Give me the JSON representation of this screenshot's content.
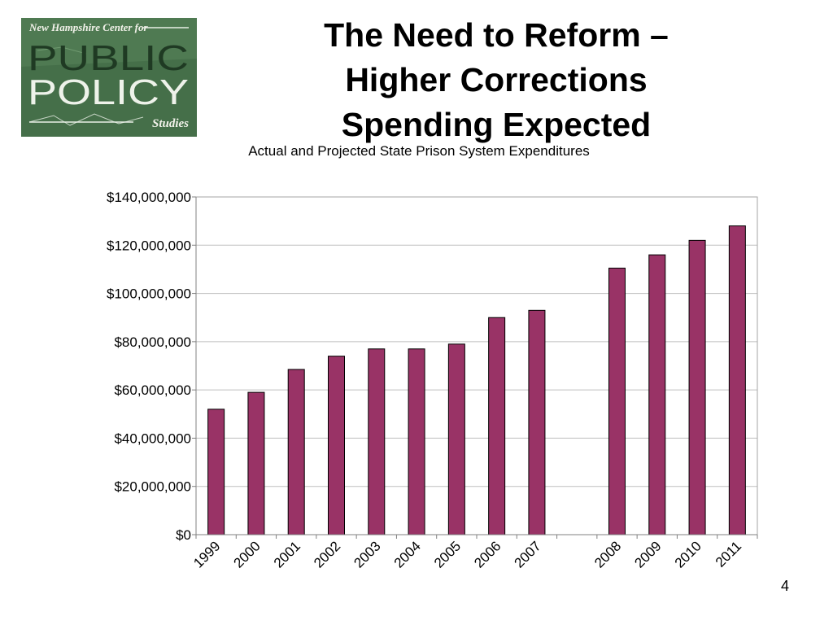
{
  "logo": {
    "line1": "New Hampshire Center for",
    "line2": "PUBLIC",
    "line3": "POLICY",
    "line4": "Studies"
  },
  "slide": {
    "title_lines": [
      "The Need to Reform –",
      "Higher Corrections",
      "Spending Expected"
    ],
    "page_number": "4"
  },
  "chart_data": {
    "type": "bar",
    "title": "Actual and Projected State Prison System Expenditures",
    "xlabel": "",
    "ylabel": "",
    "categories": [
      "1999",
      "2000",
      "2001",
      "2002",
      "2003",
      "2004",
      "2005",
      "2006",
      "2007",
      "",
      "2008",
      "2009",
      "2010",
      "2011"
    ],
    "values": [
      52000000,
      59000000,
      68500000,
      74000000,
      77000000,
      77000000,
      79000000,
      90000000,
      93000000,
      null,
      110500000,
      116000000,
      122000000,
      128000000
    ],
    "ylim": [
      0,
      140000000
    ],
    "yticks": [
      0,
      20000000,
      40000000,
      60000000,
      80000000,
      100000000,
      120000000,
      140000000
    ],
    "ytick_labels": [
      "$0",
      "$20,000,000",
      "$40,000,000",
      "$60,000,000",
      "$80,000,000",
      "$100,000,000",
      "$120,000,000",
      "$140,000,000"
    ],
    "bar_color": "#993366",
    "grid": true,
    "legend": "none"
  }
}
